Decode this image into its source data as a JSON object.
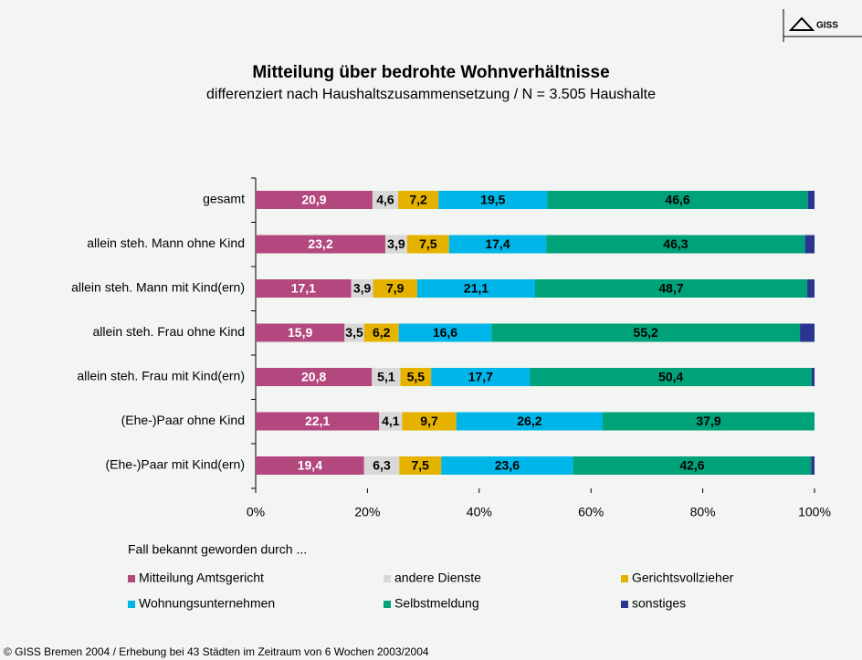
{
  "chart_data": {
    "type": "stacked-bar-horizontal",
    "title": "Mitteilung über bedrohte Wohnverhältnisse",
    "subtitle": "differenziert nach Haushaltszusammensetzung / N = 3.505 Haushalte",
    "logo": "GISS",
    "legend_title": "Fall bekannt geworden durch ...",
    "footer": "© GISS Bremen 2004 / Erhebung bei 43 Städten im Zeitraum von 6 Wochen 2003/2004",
    "categories": [
      "gesamt",
      "allein steh. Mann ohne Kind",
      "allein steh. Mann mit Kind(ern)",
      "allein steh. Frau ohne Kind",
      "allein steh. Frau mit Kind(ern)",
      "(Ehe-)Paar ohne Kind",
      "(Ehe-)Paar mit Kind(ern)"
    ],
    "series": [
      {
        "name": "Mitteilung Amtsgericht",
        "color": "#b3487f",
        "label_color": "#ffffff",
        "values": [
          20.9,
          23.2,
          17.1,
          15.9,
          20.8,
          22.1,
          19.4
        ],
        "value_labels": [
          "20,9",
          "23,2",
          "17,1",
          "15,9",
          "20,8",
          "22,1",
          "19,4"
        ]
      },
      {
        "name": "andere Dienste",
        "color": "#d8d8d8",
        "label_color": "#000000",
        "values": [
          4.6,
          3.9,
          3.9,
          3.5,
          5.1,
          4.1,
          6.3
        ],
        "value_labels": [
          "4,6",
          "3,9",
          "3,9",
          "3,5",
          "5,1",
          "4,1",
          "6,3"
        ]
      },
      {
        "name": "Gerichtsvollzieher",
        "color": "#e6b200",
        "label_color": "#000000",
        "values": [
          7.2,
          7.5,
          7.9,
          6.2,
          5.5,
          9.7,
          7.5
        ],
        "value_labels": [
          "7,2",
          "7,5",
          "7,9",
          "6,2",
          "5,5",
          "9,7",
          "7,5"
        ]
      },
      {
        "name": "Wohnungsunternehmen",
        "color": "#00b6e8",
        "label_color": "#000000",
        "values": [
          19.5,
          17.4,
          21.1,
          16.6,
          17.7,
          26.2,
          23.6
        ],
        "value_labels": [
          "19,5",
          "17,4",
          "21,1",
          "16,6",
          "17,7",
          "26,2",
          "23,6"
        ]
      },
      {
        "name": "Selbstmeldung",
        "color": "#00a27a",
        "label_color": "#000000",
        "values": [
          46.6,
          46.3,
          48.7,
          55.2,
          50.4,
          37.9,
          42.6
        ],
        "value_labels": [
          "46,6",
          "46,3",
          "48,7",
          "55,2",
          "50,4",
          "37,9",
          "42,6"
        ]
      },
      {
        "name": "sonstiges",
        "color": "#2b3590",
        "values": [
          1.2,
          1.7,
          1.3,
          2.6,
          0.5,
          0,
          0.6
        ]
      }
    ],
    "xlim": [
      0,
      100
    ],
    "xticks": [
      {
        "value": 0,
        "label": "0%"
      },
      {
        "value": 20,
        "label": "20%"
      },
      {
        "value": 40,
        "label": "40%"
      },
      {
        "value": 60,
        "label": "60%"
      },
      {
        "value": 80,
        "label": "80%"
      },
      {
        "value": 100,
        "label": "100%"
      }
    ]
  }
}
